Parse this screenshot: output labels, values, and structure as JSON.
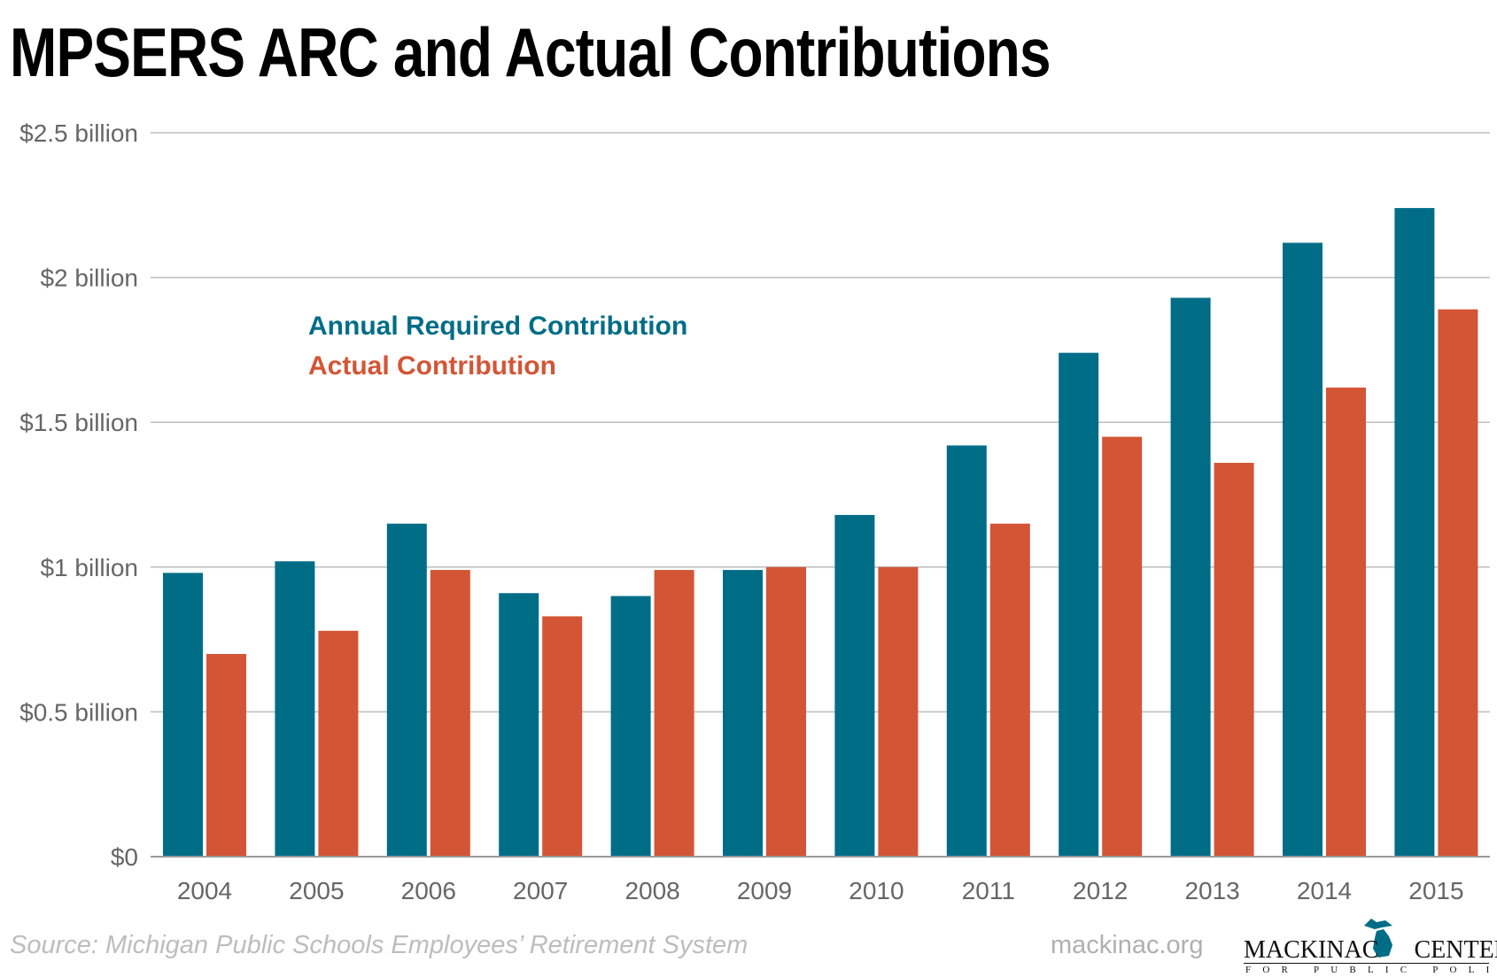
{
  "chart_data": {
    "type": "bar",
    "title": "MPSERS ARC and Actual Contributions",
    "categories": [
      "2004",
      "2005",
      "2006",
      "2007",
      "2008",
      "2009",
      "2010",
      "2011",
      "2012",
      "2013",
      "2014",
      "2015"
    ],
    "series": [
      {
        "name": "Annual Required Contribution",
        "color": "#006d87",
        "values": [
          0.98,
          1.02,
          1.15,
          0.91,
          0.9,
          0.99,
          1.18,
          1.42,
          1.74,
          1.93,
          2.12,
          2.24
        ]
      },
      {
        "name": "Actual Contribution",
        "color": "#d35535",
        "values": [
          0.7,
          0.78,
          0.99,
          0.83,
          0.99,
          1.0,
          1.0,
          1.15,
          1.45,
          1.36,
          1.62,
          1.89
        ]
      }
    ],
    "ylim": [
      0,
      2.5
    ],
    "yticks": [
      0,
      0.5,
      1,
      1.5,
      2,
      2.5
    ],
    "ytick_labels": [
      "$0",
      "$0.5 billion",
      "$1 billion",
      "$1.5 billion",
      "$2 billion",
      "$2.5 billion"
    ],
    "xlabel": "",
    "ylabel": "",
    "grid": true,
    "legend_placement": "top-left"
  },
  "footer": {
    "source": "Source: Michigan Public Schools Employees’ Retirement System",
    "site": "mackinac.org",
    "logo_text": "MACKINAC CENTER",
    "logo_subtext": "FOR PUBLIC POLICY"
  }
}
